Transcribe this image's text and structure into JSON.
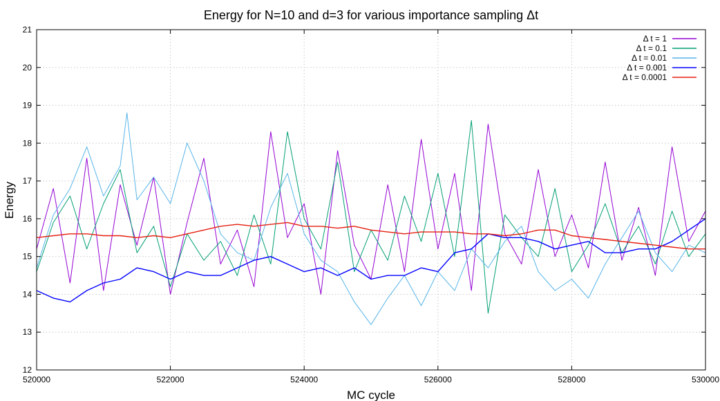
{
  "chart_data": {
    "type": "line",
    "title": "Energy for N=10 and d=3 for various importance sampling Δt",
    "xlabel": "MC cycle",
    "ylabel": "Energy",
    "xlim": [
      520000,
      530000
    ],
    "ylim": [
      12,
      21
    ],
    "x_ticks": [
      520000,
      522000,
      524000,
      526000,
      528000,
      530000
    ],
    "y_ticks": [
      12,
      13,
      14,
      15,
      16,
      17,
      18,
      19,
      20,
      21
    ],
    "grid": true,
    "legend": "top-right",
    "series": [
      {
        "name": "Δ t = 1",
        "color": "#9400d3",
        "x": [
          520000,
          520250,
          520500,
          520750,
          521000,
          521250,
          521500,
          521750,
          522000,
          522250,
          522500,
          522750,
          523000,
          523250,
          523500,
          523750,
          524000,
          524250,
          524500,
          524750,
          525000,
          525250,
          525500,
          525750,
          526000,
          526250,
          526500,
          526750,
          527000,
          527250,
          527500,
          527750,
          528000,
          528250,
          528500,
          528750,
          529000,
          529250,
          529500,
          529750,
          530000
        ],
        "y": [
          15.2,
          16.8,
          14.3,
          17.6,
          14.1,
          16.9,
          15.3,
          17.1,
          14.0,
          15.9,
          17.6,
          14.8,
          15.7,
          14.2,
          18.3,
          15.5,
          16.4,
          14.0,
          17.8,
          15.3,
          14.4,
          16.9,
          14.6,
          18.1,
          15.2,
          17.2,
          14.1,
          18.5,
          15.6,
          14.8,
          17.3,
          15.0,
          16.1,
          14.7,
          17.5,
          14.9,
          16.3,
          14.5,
          17.9,
          15.4,
          16.2
        ]
      },
      {
        "name": "Δ t = 0.1",
        "color": "#009e73",
        "x": [
          520000,
          520250,
          520500,
          520750,
          521000,
          521250,
          521500,
          521750,
          522000,
          522250,
          522500,
          522750,
          523000,
          523250,
          523500,
          523750,
          524000,
          524250,
          524500,
          524750,
          525000,
          525250,
          525500,
          525750,
          526000,
          526250,
          526500,
          526750,
          527000,
          527250,
          527500,
          527750,
          528000,
          528250,
          528500,
          528750,
          529000,
          529250,
          529500,
          529750,
          530000
        ],
        "y": [
          14.6,
          15.9,
          16.6,
          15.2,
          16.4,
          17.3,
          15.1,
          15.8,
          14.2,
          15.6,
          14.9,
          15.4,
          14.5,
          16.1,
          14.8,
          18.3,
          16.0,
          15.2,
          17.5,
          14.6,
          15.7,
          14.9,
          16.6,
          15.4,
          17.2,
          15.0,
          18.6,
          13.5,
          16.1,
          15.5,
          15.0,
          16.8,
          14.6,
          15.3,
          16.4,
          15.1,
          15.8,
          14.8,
          16.2,
          15.0,
          15.6
        ]
      },
      {
        "name": "Δ t = 0.01",
        "color": "#56b4e9",
        "x": [
          520000,
          520250,
          520500,
          520750,
          521000,
          521250,
          521350,
          521500,
          521750,
          522000,
          522250,
          522500,
          522750,
          523000,
          523250,
          523500,
          523750,
          524000,
          524250,
          524500,
          524750,
          525000,
          525250,
          525500,
          525750,
          526000,
          526250,
          526500,
          526750,
          527000,
          527250,
          527500,
          527750,
          528000,
          528250,
          528500,
          528750,
          529000,
          529250,
          529500,
          529750,
          530000
        ],
        "y": [
          14.7,
          16.1,
          16.8,
          17.9,
          16.6,
          17.4,
          18.8,
          16.5,
          17.1,
          16.4,
          18.0,
          17.0,
          15.6,
          15.1,
          14.9,
          16.3,
          17.2,
          15.6,
          14.9,
          14.6,
          13.8,
          13.2,
          13.9,
          14.5,
          13.7,
          14.6,
          14.1,
          15.2,
          14.7,
          15.4,
          15.8,
          14.6,
          14.1,
          14.4,
          13.9,
          14.8,
          15.5,
          16.2,
          15.1,
          14.6,
          15.3,
          15.1
        ]
      },
      {
        "name": "Δ t = 0.001",
        "color": "#0000ff",
        "x": [
          520000,
          520250,
          520500,
          520750,
          521000,
          521250,
          521500,
          521750,
          522000,
          522250,
          522500,
          522750,
          523000,
          523250,
          523500,
          523750,
          524000,
          524250,
          524500,
          524750,
          525000,
          525250,
          525500,
          525750,
          526000,
          526250,
          526500,
          526750,
          527000,
          527250,
          527500,
          527750,
          528000,
          528250,
          528500,
          528750,
          529000,
          529250,
          529500,
          529750,
          530000
        ],
        "y": [
          14.1,
          13.9,
          13.8,
          14.1,
          14.3,
          14.4,
          14.7,
          14.6,
          14.4,
          14.6,
          14.5,
          14.5,
          14.7,
          14.9,
          15.0,
          14.8,
          14.6,
          14.7,
          14.5,
          14.7,
          14.4,
          14.5,
          14.5,
          14.7,
          14.6,
          15.1,
          15.2,
          15.6,
          15.5,
          15.5,
          15.4,
          15.2,
          15.3,
          15.4,
          15.1,
          15.1,
          15.2,
          15.2,
          15.4,
          15.7,
          16.0
        ]
      },
      {
        "name": "Δ t = 0.0001",
        "color": "#e51e10",
        "x": [
          520000,
          520250,
          520500,
          520750,
          521000,
          521250,
          521500,
          521750,
          522000,
          522250,
          522500,
          522750,
          523000,
          523250,
          523500,
          523750,
          524000,
          524250,
          524500,
          524750,
          525000,
          525250,
          525500,
          525750,
          526000,
          526250,
          526500,
          526750,
          527000,
          527250,
          527500,
          527750,
          528000,
          528250,
          528500,
          528750,
          529000,
          529250,
          529500,
          529750,
          530000
        ],
        "y": [
          15.5,
          15.55,
          15.6,
          15.6,
          15.55,
          15.55,
          15.5,
          15.55,
          15.5,
          15.6,
          15.7,
          15.8,
          15.85,
          15.8,
          15.85,
          15.9,
          15.8,
          15.8,
          15.75,
          15.8,
          15.7,
          15.65,
          15.6,
          15.65,
          15.65,
          15.65,
          15.6,
          15.6,
          15.55,
          15.6,
          15.7,
          15.7,
          15.55,
          15.5,
          15.45,
          15.4,
          15.35,
          15.3,
          15.25,
          15.2,
          15.2
        ]
      }
    ]
  }
}
